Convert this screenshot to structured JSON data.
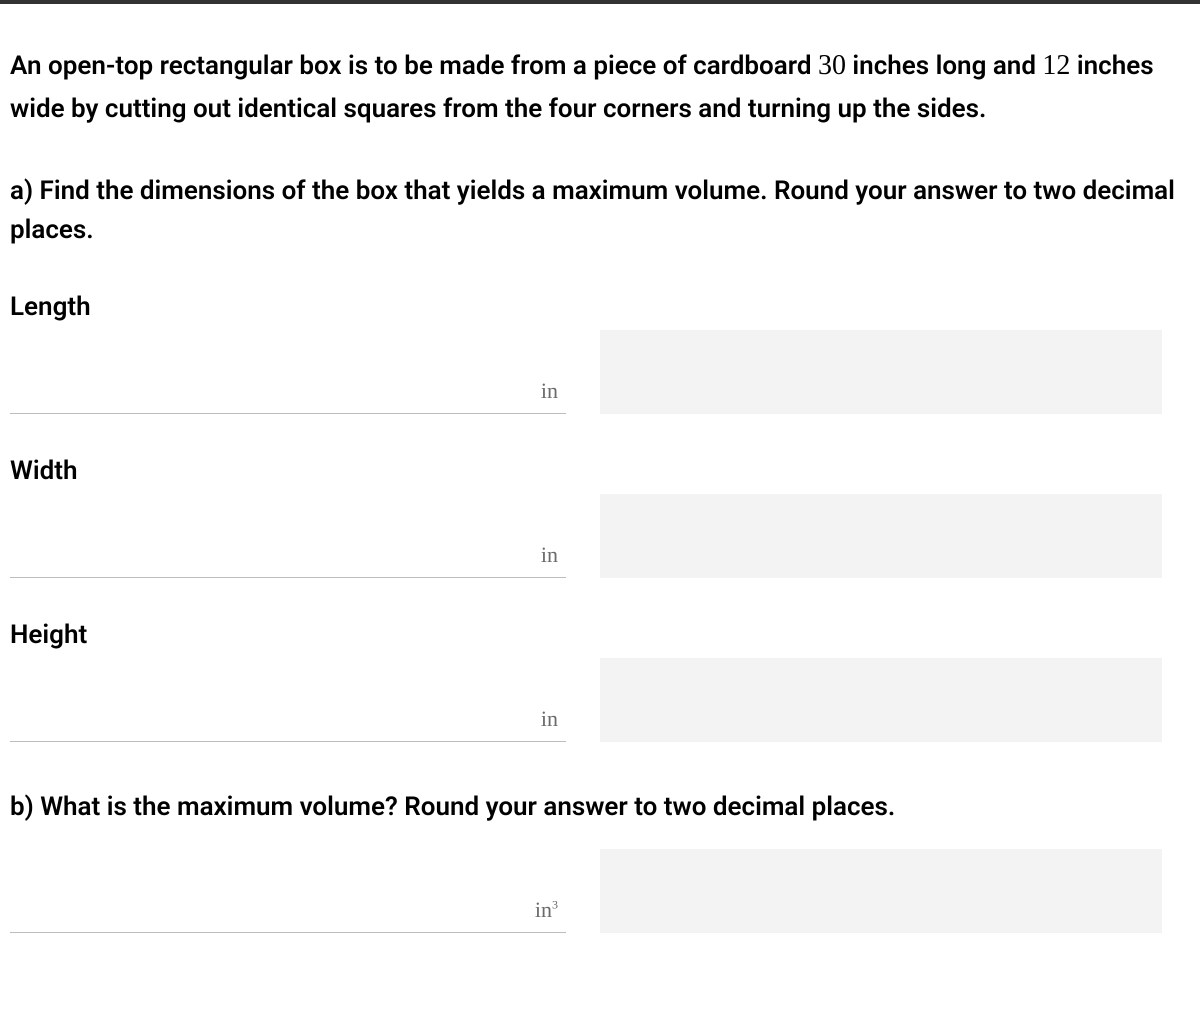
{
  "problem": {
    "intro_part1": "An open-top rectangular box is to be made from a piece of cardboard ",
    "num1": "30",
    "intro_part2": " inches long and ",
    "num2": "12",
    "intro_part3": " inches wide by cutting out identical squares from the four corners and turning up the sides."
  },
  "question_a": "a) Find the dimensions of the box that yields a maximum volume. Round your answer to two decimal places.",
  "fields": {
    "length": {
      "label": "Length",
      "unit": "in",
      "value": ""
    },
    "width": {
      "label": "Width",
      "unit": "in",
      "value": ""
    },
    "height": {
      "label": "Height",
      "unit": "in",
      "value": ""
    }
  },
  "question_b": "b) What is the maximum volume? Round your answer to two decimal places.",
  "volume": {
    "unit_base": "in",
    "unit_exp": "3",
    "value": ""
  },
  "colors": {
    "top_bar": "#333333",
    "background": "#ffffff",
    "text": "#000000",
    "unit_text": "#6b6b6b",
    "underline": "#bdbdbd",
    "side_box": "#f3f3f3"
  }
}
